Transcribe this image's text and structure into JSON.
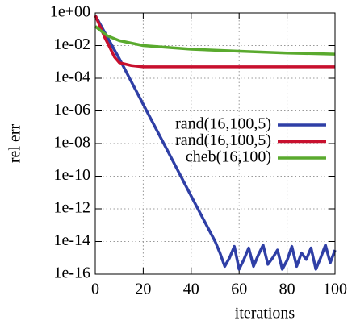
{
  "chart_data": {
    "type": "line",
    "xlabel": "iterations",
    "ylabel": "rel err",
    "log_y": true,
    "grid": true,
    "legend": "upper right",
    "xlim": [
      0,
      100
    ],
    "xticks": [
      0,
      20,
      40,
      60,
      80,
      100
    ],
    "ylim": [
      1e-16,
      1
    ],
    "yticks": [
      {
        "value": 1,
        "label": "1e+00"
      },
      {
        "value": 0.01,
        "label": "1e-02"
      },
      {
        "value": 0.0001,
        "label": "1e-04"
      },
      {
        "value": 1e-06,
        "label": "1e-06"
      },
      {
        "value": 1e-08,
        "label": "1e-08"
      },
      {
        "value": 1e-10,
        "label": "1e-10"
      },
      {
        "value": 1e-12,
        "label": "1e-12"
      },
      {
        "value": 1e-14,
        "label": "1e-14"
      },
      {
        "value": 1e-16,
        "label": "1e-16"
      }
    ],
    "series": [
      {
        "name": "rand(16,100,5)",
        "color": "#2f3fa6",
        "x": [
          0,
          10,
          20,
          30,
          40,
          50,
          52,
          54,
          56,
          58,
          60,
          62,
          64,
          66,
          68,
          70,
          72,
          74,
          76,
          78,
          80,
          82,
          84,
          86,
          88,
          90,
          92,
          94,
          96,
          98,
          100
        ],
        "values": [
          0.7,
          0.0016,
          2.5e-06,
          4e-09,
          6e-12,
          1e-14,
          2e-15,
          3e-16,
          1e-15,
          5e-15,
          2e-16,
          8e-16,
          4e-15,
          3e-16,
          1.5e-15,
          6e-15,
          4e-16,
          1e-15,
          3e-15,
          2e-16,
          7e-16,
          5e-15,
          3e-16,
          2e-15,
          8e-16,
          4e-15,
          2e-16,
          1e-15,
          6e-15,
          5e-16,
          3e-15
        ]
      },
      {
        "name": "rand(16,100,5)",
        "color": "#c8102e",
        "x": [
          0,
          2,
          4,
          6,
          8,
          10,
          15,
          20,
          30,
          40,
          50,
          60,
          70,
          80,
          90,
          100
        ],
        "values": [
          0.7,
          0.15,
          0.03,
          0.008,
          0.002,
          0.0009,
          0.0006,
          0.0005,
          0.0005,
          0.0005,
          0.0005,
          0.0005,
          0.0005,
          0.0005,
          0.0005,
          0.0005
        ]
      },
      {
        "name": "cheb(16,100)",
        "color": "#5aaa2e",
        "x": [
          0,
          5,
          10,
          20,
          40,
          60,
          80,
          100
        ],
        "values": [
          0.15,
          0.04,
          0.02,
          0.01,
          0.006,
          0.0045,
          0.0035,
          0.003
        ]
      }
    ]
  }
}
